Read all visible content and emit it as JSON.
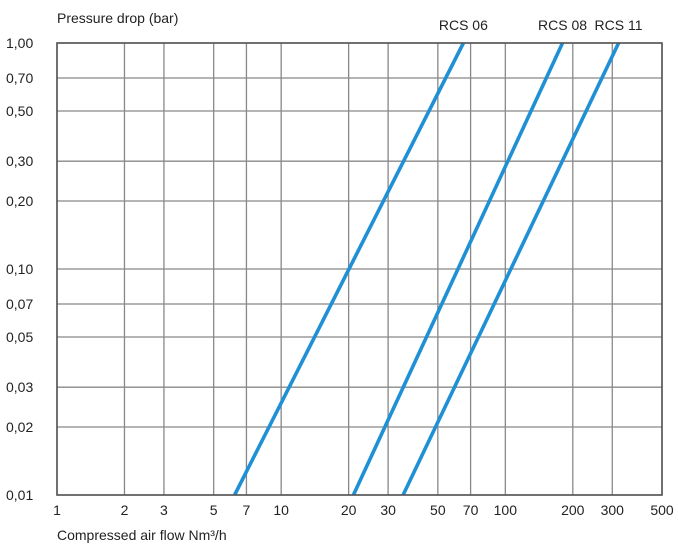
{
  "colors": {
    "series": "#1f8fd6",
    "grid": "#888888",
    "frame": "#555555",
    "background": "#ffffff"
  },
  "chart_data": {
    "type": "line",
    "title": "",
    "xlabel": "Compressed air flow Nm³/h",
    "ylabel": "Pressure drop (bar)",
    "xscale": "log",
    "yscale": "log",
    "xlim": [
      1,
      500
    ],
    "ylim": [
      0.01,
      1.0
    ],
    "grid": true,
    "legend": "none (series labelled at top of lines)",
    "x_ticks": [
      {
        "value": 1,
        "label": "1"
      },
      {
        "value": 2,
        "label": "2"
      },
      {
        "value": 3,
        "label": "3"
      },
      {
        "value": 5,
        "label": "5"
      },
      {
        "value": 7,
        "label": "7"
      },
      {
        "value": 10,
        "label": "10"
      },
      {
        "value": 20,
        "label": "20"
      },
      {
        "value": 30,
        "label": "30"
      },
      {
        "value": 50,
        "label": "50"
      },
      {
        "value": 70,
        "label": "70"
      },
      {
        "value": 100,
        "label": "100"
      },
      {
        "value": 200,
        "label": "200"
      },
      {
        "value": 300,
        "label": "300"
      },
      {
        "value": 500,
        "label": "500"
      }
    ],
    "y_ticks": [
      {
        "value": 1.0,
        "label": "1,00"
      },
      {
        "value": 0.7,
        "label": "0,70"
      },
      {
        "value": 0.5,
        "label": "0,50"
      },
      {
        "value": 0.3,
        "label": "0,30"
      },
      {
        "value": 0.2,
        "label": "0,20"
      },
      {
        "value": 0.1,
        "label": "0,10"
      },
      {
        "value": 0.07,
        "label": "0,07"
      },
      {
        "value": 0.05,
        "label": "0,05"
      },
      {
        "value": 0.03,
        "label": "0,03"
      },
      {
        "value": 0.02,
        "label": "0,02"
      },
      {
        "value": 0.01,
        "label": "0,01"
      }
    ],
    "series": [
      {
        "name": "RCS 06",
        "x": [
          6.2,
          65
        ],
        "y": [
          0.01,
          1.0
        ]
      },
      {
        "name": "RCS 08",
        "x": [
          21,
          180
        ],
        "y": [
          0.01,
          1.0
        ]
      },
      {
        "name": "RCS 11",
        "x": [
          35,
          320
        ],
        "y": [
          0.01,
          1.0
        ]
      }
    ]
  }
}
